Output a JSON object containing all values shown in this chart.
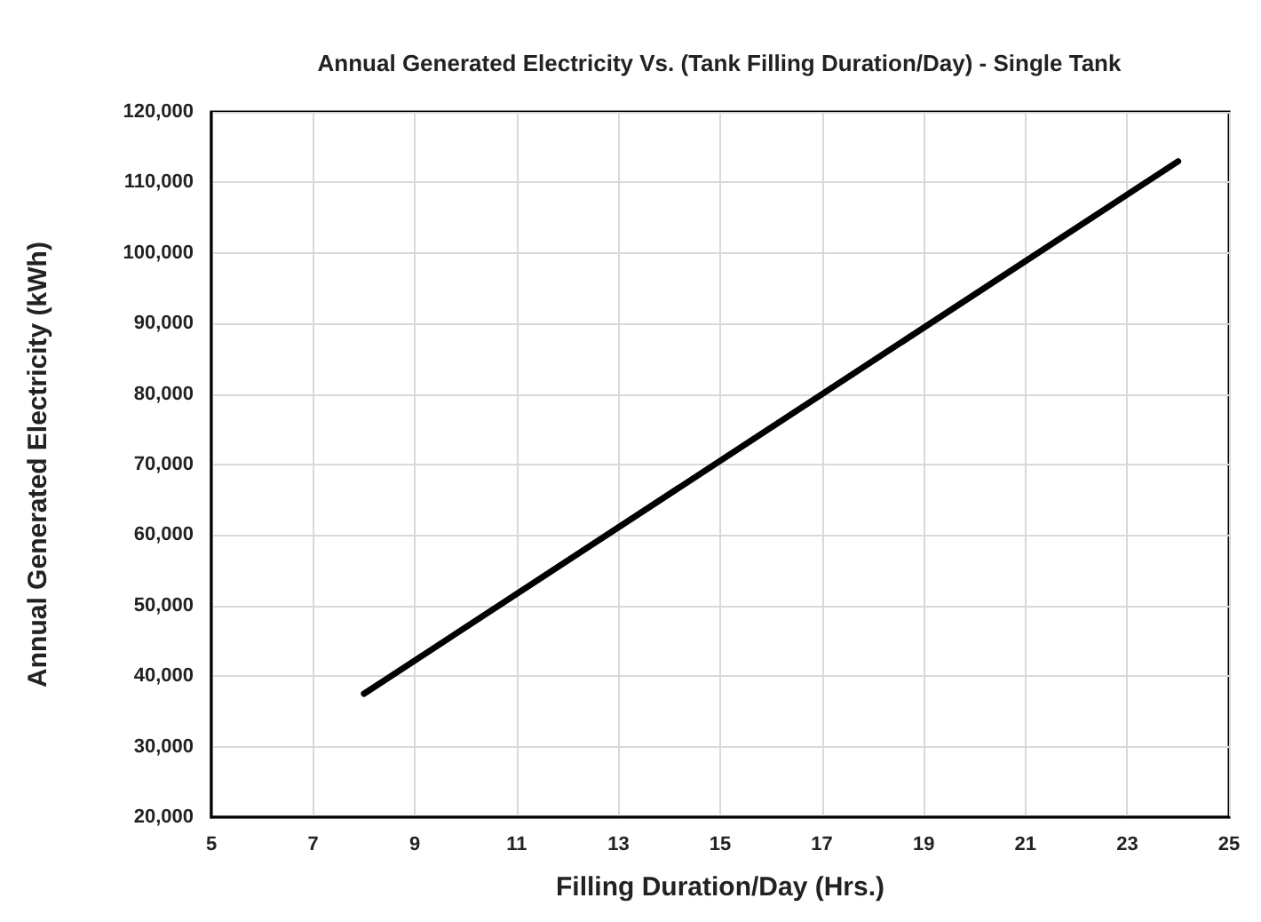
{
  "chart_data": {
    "type": "line",
    "title": "Annual Generated Electricity Vs. (Tank Filling Duration/Day) - Single Tank",
    "xlabel": "Filling Duration/Day (Hrs.)",
    "ylabel": "Annual Generated Electricity (kWh)",
    "x": [
      8,
      24
    ],
    "series": [
      {
        "color": "#000000",
        "values": [
          37500,
          113000
        ]
      }
    ],
    "xlim": [
      5,
      25
    ],
    "xticks": [
      5,
      7,
      9,
      11,
      13,
      15,
      17,
      19,
      21,
      23,
      25
    ],
    "ylim": [
      20000,
      120000
    ],
    "yticks": [
      {
        "value": 20000,
        "label": "20,000"
      },
      {
        "value": 30000,
        "label": "30,000"
      },
      {
        "value": 40000,
        "label": "40,000"
      },
      {
        "value": 50000,
        "label": "50,000"
      },
      {
        "value": 60000,
        "label": "60,000"
      },
      {
        "value": 70000,
        "label": "70,000"
      },
      {
        "value": 80000,
        "label": "80,000"
      },
      {
        "value": 90000,
        "label": "90,000"
      },
      {
        "value": 100000,
        "label": "100,000"
      },
      {
        "value": 110000,
        "label": "110,000"
      },
      {
        "value": 120000,
        "label": "120,000"
      }
    ],
    "grid": true,
    "marker": "none",
    "line_style": "solid"
  }
}
